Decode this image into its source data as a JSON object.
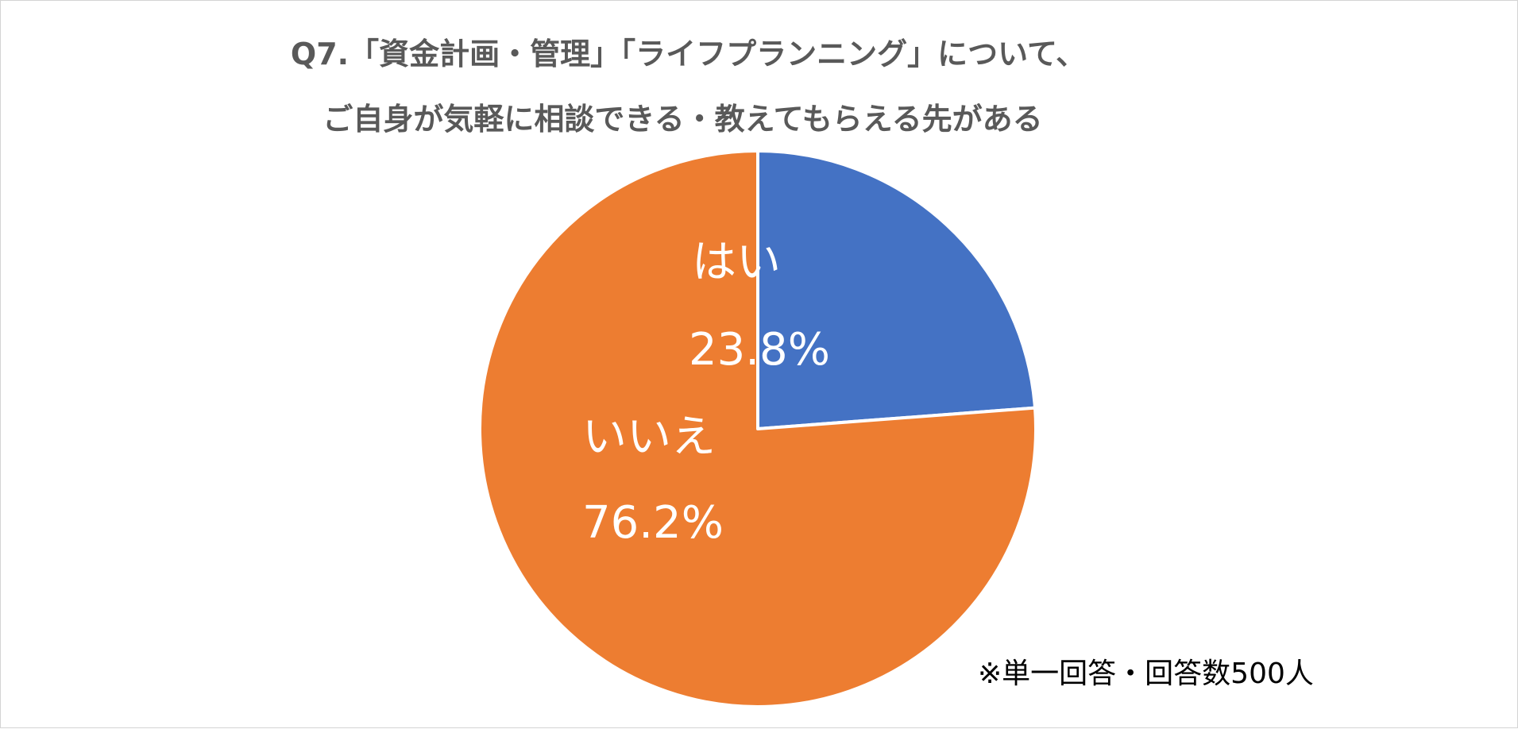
{
  "chart_data": {
    "type": "pie",
    "title_lines": [
      "Q7.「資金計画・管理」「ライフプランニング」について、",
      "ご自身が気軽に相談できる・教えてもらえる先がある"
    ],
    "slices": [
      {
        "label": "はい",
        "value": 23.8,
        "value_text": "23.8%",
        "color": "#4472C4"
      },
      {
        "label": "いいえ",
        "value": 76.2,
        "value_text": "76.2%",
        "color": "#ED7D31"
      }
    ],
    "start": "12 o'clock, clockwise",
    "note": "※単一回答・回答数500人"
  }
}
